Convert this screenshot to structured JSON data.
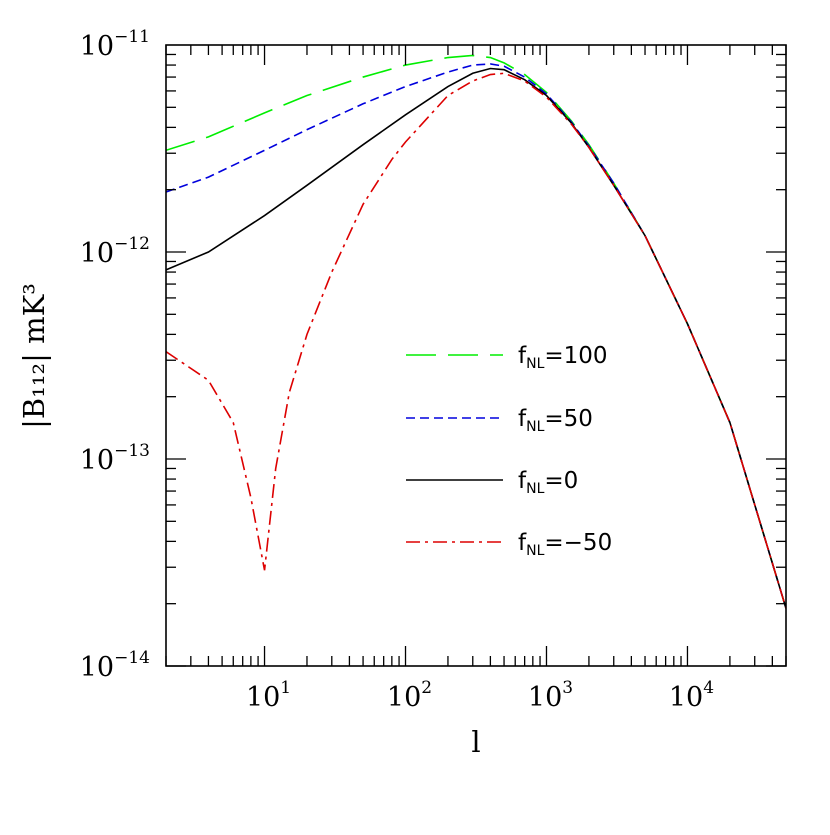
{
  "chart_data": {
    "type": "line",
    "title": "",
    "xlabel": "l",
    "ylabel": "|B₁₁₂|   mK³",
    "xscale": "log",
    "yscale": "log",
    "xlim": [
      2,
      50000
    ],
    "ylim": [
      1e-14,
      1e-11
    ],
    "grid": false,
    "legend_position": "center-right",
    "x_ticks": [
      {
        "value": 10,
        "base": "10",
        "exp": "1"
      },
      {
        "value": 100,
        "base": "10",
        "exp": "2"
      },
      {
        "value": 1000,
        "base": "10",
        "exp": "3"
      },
      {
        "value": 10000,
        "base": "10",
        "exp": "4"
      }
    ],
    "y_ticks": [
      {
        "value": 1e-14,
        "base": "10",
        "exp": "−14"
      },
      {
        "value": 1e-13,
        "base": "10",
        "exp": "−13"
      },
      {
        "value": 1e-12,
        "base": "10",
        "exp": "−12"
      },
      {
        "value": 1e-11,
        "base": "10",
        "exp": "−11"
      }
    ],
    "series": [
      {
        "name": "f_NL=100",
        "label_main": "f",
        "label_sub": "NL",
        "label_value": "=100",
        "color": "#00ee00",
        "dash": "30,12",
        "x": [
          2,
          4,
          10,
          20,
          50,
          100,
          200,
          300,
          400,
          500,
          700,
          1000,
          1500,
          2000,
          3000,
          5000,
          10000,
          20000,
          50000
        ],
        "y": [
          3.1e-12,
          3.6e-12,
          4.7e-12,
          5.7e-12,
          7e-12,
          8e-12,
          8.7e-12,
          8.9e-12,
          8.7e-12,
          8.2e-12,
          7.2e-12,
          5.9e-12,
          4.3e-12,
          3.3e-12,
          2.15e-12,
          1.2e-12,
          4.5e-13,
          1.5e-13,
          1.9e-14
        ]
      },
      {
        "name": "f_NL=50",
        "label_main": "f",
        "label_sub": "NL",
        "label_value": "=50",
        "color": "#0000dd",
        "dash": "9,5",
        "x": [
          2,
          4,
          10,
          20,
          50,
          100,
          200,
          300,
          400,
          500,
          700,
          1000,
          1500,
          2000,
          3000,
          5000,
          10000,
          20000,
          50000
        ],
        "y": [
          1.95e-12,
          2.3e-12,
          3.1e-12,
          3.9e-12,
          5.2e-12,
          6.3e-12,
          7.4e-12,
          8e-12,
          8.1e-12,
          7.9e-12,
          7e-12,
          5.8e-12,
          4.25e-12,
          3.25e-12,
          2.15e-12,
          1.2e-12,
          4.5e-13,
          1.5e-13,
          1.9e-14
        ]
      },
      {
        "name": "f_NL=0",
        "label_main": "f",
        "label_sub": "NL",
        "label_value": "=0",
        "color": "#000000",
        "dash": "",
        "x": [
          2,
          4,
          10,
          20,
          50,
          100,
          200,
          300,
          400,
          500,
          700,
          1000,
          1500,
          2000,
          3000,
          5000,
          10000,
          20000,
          50000
        ],
        "y": [
          8.2e-13,
          1e-12,
          1.5e-12,
          2.1e-12,
          3.3e-12,
          4.6e-12,
          6.3e-12,
          7.3e-12,
          7.7e-12,
          7.6e-12,
          6.8e-12,
          5.7e-12,
          4.2e-12,
          3.2e-12,
          2.1e-12,
          1.2e-12,
          4.5e-13,
          1.5e-13,
          1.9e-14
        ]
      },
      {
        "name": "f_NL=−50",
        "label_main": "f",
        "label_sub": "NL",
        "label_value": "=−50",
        "color": "#dd0000",
        "dash": "14,5,3,5",
        "x": [
          2,
          4,
          6,
          8,
          10,
          12,
          15,
          20,
          30,
          50,
          80,
          100,
          150,
          200,
          300,
          400,
          500,
          700,
          1000,
          1500,
          2000,
          3000,
          5000,
          10000,
          20000,
          50000
        ],
        "y": [
          3.3e-13,
          2.4e-13,
          1.5e-13,
          6.5e-14,
          2.9e-14,
          9e-14,
          2.1e-13,
          4e-13,
          8e-13,
          1.7e-12,
          2.8e-12,
          3.4e-12,
          4.6e-12,
          5.7e-12,
          6.7e-12,
          7.2e-12,
          7.3e-12,
          6.7e-12,
          5.6e-12,
          4.15e-12,
          3.2e-12,
          2.1e-12,
          1.2e-12,
          4.5e-13,
          1.5e-13,
          1.9e-14
        ]
      }
    ]
  }
}
